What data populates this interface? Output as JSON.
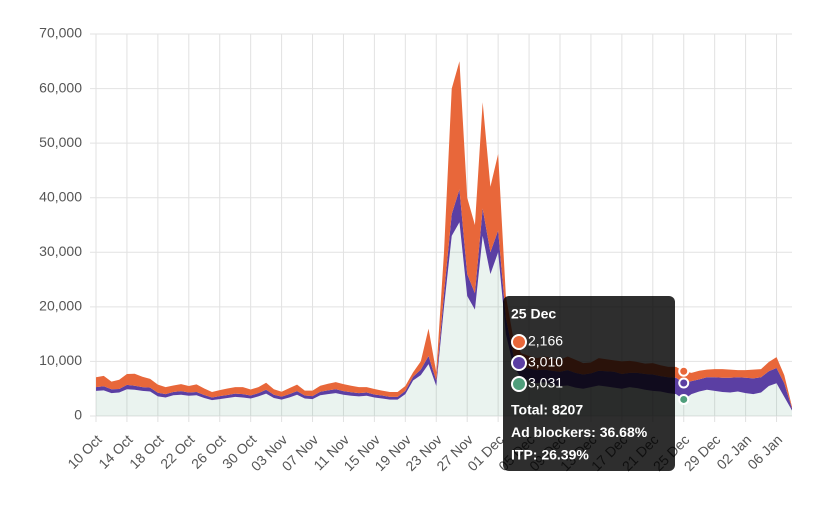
{
  "chart_data": {
    "type": "stacked-area",
    "categories": [
      "10 Oct",
      null,
      null,
      null,
      "14 Oct",
      null,
      null,
      null,
      "18 Oct",
      null,
      null,
      null,
      "22 Oct",
      null,
      null,
      null,
      "26 Oct",
      null,
      null,
      null,
      "30 Oct",
      null,
      null,
      null,
      "03 Nov",
      null,
      null,
      null,
      "07 Nov",
      null,
      null,
      null,
      "11 Nov",
      null,
      null,
      null,
      "15 Nov",
      null,
      null,
      null,
      "19 Nov",
      null,
      null,
      null,
      "23 Nov",
      null,
      null,
      null,
      "27 Nov",
      null,
      null,
      null,
      "01 Dec",
      null,
      null,
      null,
      "05 Dec",
      null,
      null,
      null,
      "09 Dec",
      null,
      null,
      null,
      "13 Dec",
      null,
      null,
      null,
      "17 Dec",
      null,
      null,
      null,
      "21 Dec",
      null,
      null,
      null,
      "25 Dec",
      null,
      null,
      null,
      "29 Dec",
      null,
      null,
      null,
      "02 Jan",
      null,
      null,
      null,
      "06 Jan",
      null,
      null
    ],
    "series": [
      {
        "color": "#4f9e7b",
        "values": [
          4600,
          4700,
          4200,
          4300,
          4900,
          4800,
          4600,
          4500,
          3600,
          3400,
          3800,
          3900,
          3700,
          3800,
          3300,
          2900,
          3100,
          3300,
          3500,
          3400,
          3200,
          3600,
          4100,
          3300,
          3000,
          3400,
          3900,
          3200,
          3100,
          3800,
          4000,
          4200,
          3900,
          3700,
          3600,
          3700,
          3400,
          3200,
          3000,
          3000,
          4000,
          6500,
          7500,
          9500,
          5500,
          20000,
          33000,
          35500,
          22000,
          19500,
          33000,
          26000,
          30000,
          15000,
          9000,
          7000,
          6500,
          6000,
          6200,
          5800,
          5500,
          5600,
          5200,
          5000,
          5300,
          5600,
          5400,
          5200,
          5000,
          5300,
          5100,
          4800,
          4600,
          4500,
          4200,
          4000,
          3031,
          4000,
          4500,
          4800,
          4600,
          4400,
          4300,
          4500,
          4200,
          4000,
          4300,
          5500,
          6000,
          3500,
          1000
        ]
      },
      {
        "color": "#5b3fa3",
        "values": [
          700,
          750,
          700,
          650,
          800,
          750,
          700,
          700,
          650,
          600,
          600,
          650,
          600,
          600,
          550,
          500,
          550,
          550,
          600,
          600,
          550,
          600,
          700,
          600,
          550,
          600,
          650,
          550,
          550,
          650,
          700,
          700,
          650,
          650,
          600,
          600,
          550,
          550,
          500,
          500,
          600,
          700,
          1000,
          1500,
          1000,
          2500,
          4000,
          6000,
          4000,
          3000,
          5000,
          4000,
          4000,
          3000,
          2000,
          2000,
          2200,
          2400,
          2300,
          2500,
          2600,
          2800,
          2700,
          2600,
          2500,
          2700,
          2800,
          2900,
          2700,
          2600,
          2800,
          2900,
          3000,
          2800,
          2900,
          3000,
          3010,
          2400,
          2200,
          2300,
          2500,
          2600,
          2700,
          2600,
          2800,
          2900,
          2800,
          2700,
          2800,
          2500,
          400
        ]
      },
      {
        "color": "#e8673a",
        "values": [
          1800,
          1900,
          1400,
          1700,
          2000,
          2200,
          1900,
          1600,
          1500,
          1300,
          1200,
          1300,
          1200,
          1400,
          1200,
          1000,
          1100,
          1200,
          1200,
          1300,
          1100,
          1100,
          1300,
          1000,
          900,
          1100,
          1200,
          900,
          1000,
          1100,
          1200,
          1300,
          1300,
          1200,
          1100,
          1000,
          1000,
          900,
          900,
          900,
          900,
          800,
          1500,
          5000,
          1500,
          7500,
          23000,
          23500,
          14000,
          12500,
          19500,
          12000,
          14000,
          4000,
          3000,
          2500,
          2300,
          2200,
          2400,
          2300,
          2200,
          2500,
          2400,
          2100,
          2000,
          2300,
          2200,
          2100,
          2300,
          2200,
          2000,
          1900,
          2100,
          2000,
          1900,
          2000,
          2166,
          1500,
          1600,
          1400,
          1500,
          1600,
          1500,
          1300,
          1400,
          1600,
          1500,
          1700,
          2000,
          1500,
          300
        ]
      }
    ],
    "ylim": [
      0,
      70000
    ],
    "yticks": [
      0,
      {
        "value": 10000,
        "label": "10,000"
      },
      {
        "value": 20000,
        "label": "20,000"
      },
      {
        "value": 30000,
        "label": "30,000"
      },
      {
        "value": 40000,
        "label": "40,000"
      },
      {
        "value": 50000,
        "label": "50,000"
      },
      {
        "value": 60000,
        "label": "60,000"
      },
      {
        "value": 70000,
        "label": "70,000"
      }
    ],
    "grid": true,
    "tooltip": {
      "title": "25 Dec",
      "values": [
        2166,
        3010,
        3031
      ],
      "value_labels": [
        "2,166",
        "3,010",
        "3,031"
      ],
      "summary": [
        "Total: 8207",
        "Ad blockers: 36.68%",
        "ITP: 26.39%"
      ]
    }
  }
}
